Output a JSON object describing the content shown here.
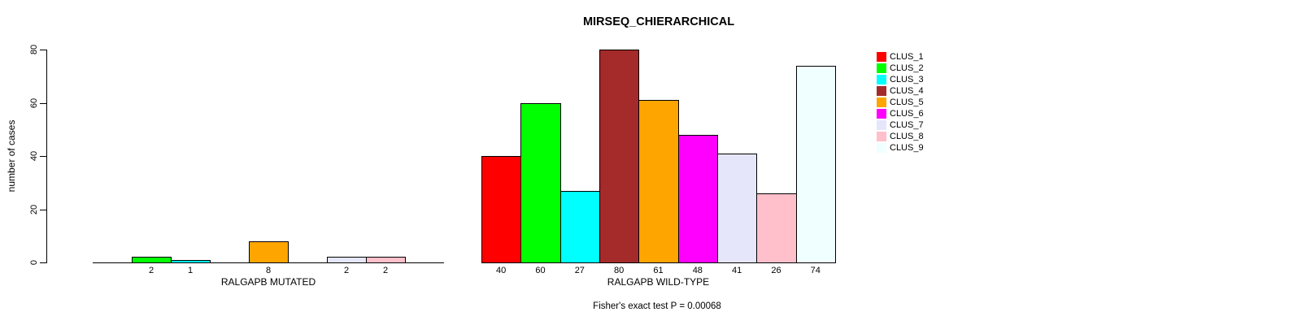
{
  "chart_data": {
    "type": "bar",
    "title": "MIRSEQ_CHIERARCHICAL",
    "ylabel": "number of cases",
    "ylim": [
      0,
      80
    ],
    "yticks": [
      0,
      20,
      40,
      60,
      80
    ],
    "grid": false,
    "categories": [
      "CLUS_1",
      "CLUS_2",
      "CLUS_3",
      "CLUS_4",
      "CLUS_5",
      "CLUS_6",
      "CLUS_7",
      "CLUS_8",
      "CLUS_9"
    ],
    "colors": [
      "#FF0000",
      "#00FF00",
      "#00FFFF",
      "#A52A2A",
      "#FFA500",
      "#FF00FF",
      "#E6E6FA",
      "#FFC0CB",
      "#F0FFFF"
    ],
    "groups": [
      {
        "label": "RALGAPB MUTATED",
        "values": [
          0,
          2,
          1,
          0,
          8,
          0,
          2,
          2,
          0
        ]
      },
      {
        "label": "RALGAPB WILD-TYPE",
        "values": [
          40,
          60,
          27,
          80,
          61,
          48,
          41,
          26,
          74
        ]
      }
    ],
    "legend": {
      "position": "right",
      "entries": [
        "CLUS_1",
        "CLUS_2",
        "CLUS_3",
        "CLUS_4",
        "CLUS_5",
        "CLUS_6",
        "CLUS_7",
        "CLUS_8",
        "CLUS_9"
      ]
    },
    "annotation": "Fisher's exact test P = 0.00068"
  }
}
